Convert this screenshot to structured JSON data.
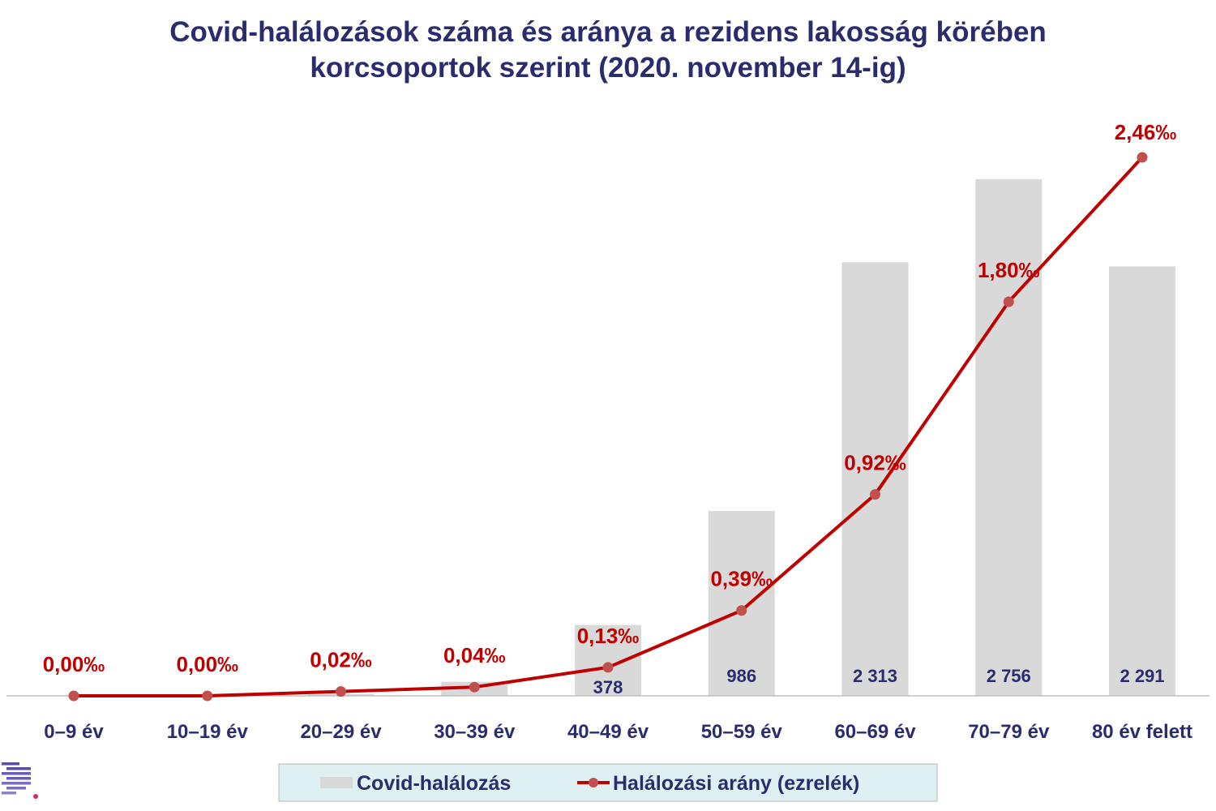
{
  "chart_data": {
    "type": "bar",
    "title_lines": [
      "Covid-halálozások száma és aránya a rezidens lakosság körében",
      "korcsoportok szerint (2020. november 14-ig)"
    ],
    "categories": [
      "0–9 év",
      "10–19 év",
      "20–29 év",
      "30–39 év",
      "40–49 év",
      "50–59 év",
      "60–69 év",
      "70–79 év",
      "80 év felett"
    ],
    "series": [
      {
        "name": "Covid-halálozás",
        "kind": "bar",
        "values": [
          0,
          1,
          10,
          75,
          378,
          986,
          2313,
          2756,
          2291
        ],
        "value_labels": [
          "",
          "",
          "",
          "",
          "378",
          "986",
          "2 313",
          "2 756",
          "2 291"
        ],
        "color": "#d9d9d9"
      },
      {
        "name": "Halálozási arány (ezrelék)",
        "kind": "line",
        "values": [
          0.0,
          0.0,
          0.02,
          0.04,
          0.13,
          0.39,
          0.92,
          1.8,
          2.46
        ],
        "value_labels": [
          "0,00‰",
          "0,00‰",
          "0,02‰",
          "0,04‰",
          "0,13‰",
          "0,39‰",
          "0,92‰",
          "1,80‰",
          "2,46‰"
        ],
        "color": "#c00000",
        "marker_color": "#c0504d"
      }
    ],
    "bar_axis_range": [
      0,
      2756
    ],
    "rate_axis_range": [
      0,
      2.46
    ],
    "grid": false,
    "legend_position": "bottom-center"
  }
}
